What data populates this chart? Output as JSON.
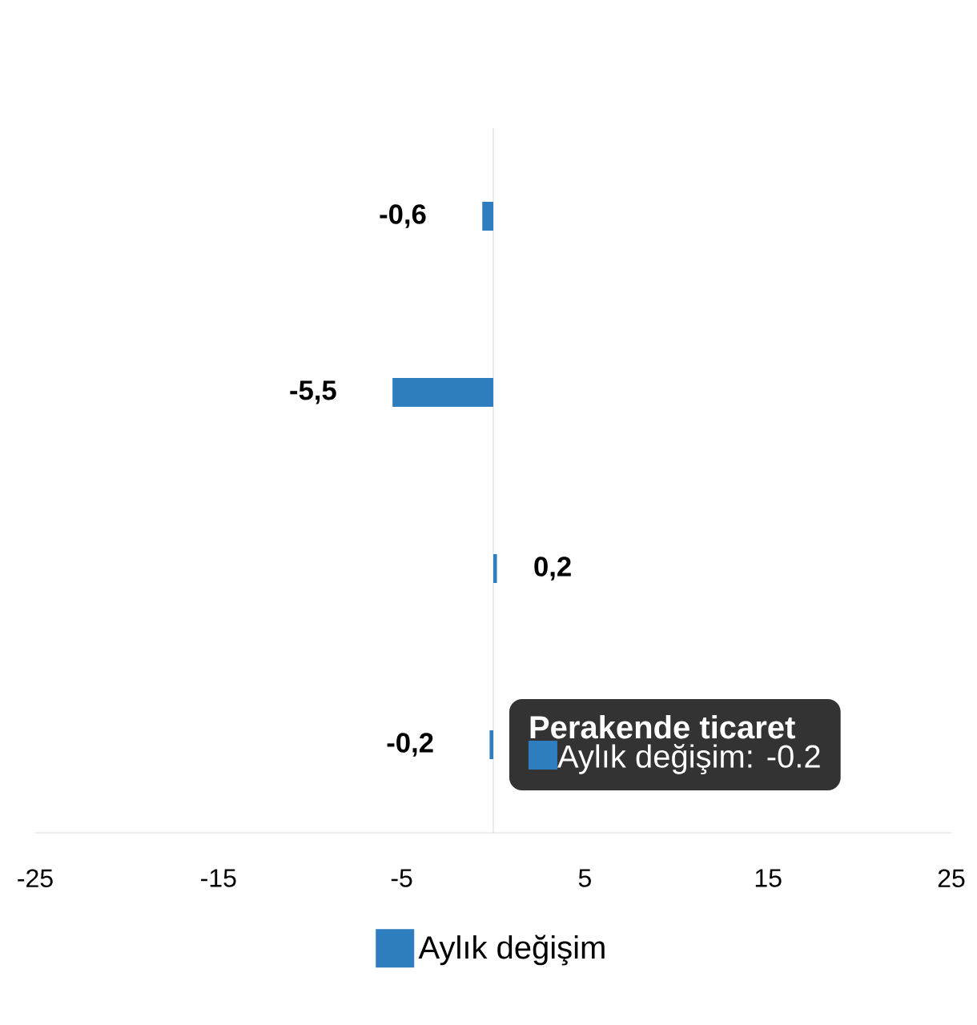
{
  "chart_data": {
    "type": "bar",
    "orientation": "horizontal",
    "categories": [
      null,
      null,
      null,
      null
    ],
    "series": [
      {
        "name": "Aylık değişim",
        "color": "#2e7ebf",
        "values": [
          -0.6,
          -5.5,
          0.2,
          -0.2
        ]
      }
    ],
    "value_labels": [
      "-0,6",
      "-5,5",
      "0,2",
      "-0,2"
    ],
    "xlim": [
      -25,
      25
    ],
    "xticks": [
      -25,
      -15,
      -5,
      5,
      15,
      25
    ],
    "tick_labels": "x",
    "grid": false,
    "legend": "bottom",
    "annotations": [
      {
        "text": "Perakende ticaret",
        "x": -0.2
      },
      "Aylık değişim: -0.2"
    ]
  }
}
